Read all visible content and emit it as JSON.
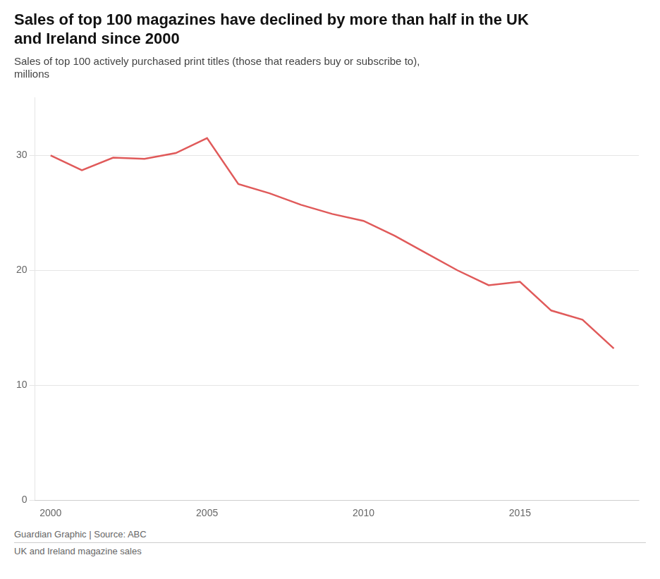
{
  "chart_data": {
    "type": "line",
    "title": "Sales of top 100 magazines have declined by more than half in the UK\nand Ireland since 2000",
    "subtitle": "Sales of top 100 actively purchased print titles (those that readers buy or subscribe to),\nmillions",
    "annotations": [
      "Guardian Graphic | Source: ABC",
      "UK and Ireland magazine sales"
    ],
    "x": [
      2000,
      2001,
      2002,
      2003,
      2004,
      2005,
      2006,
      2007,
      2008,
      2009,
      2010,
      2011,
      2012,
      2013,
      2014,
      2015,
      2016,
      2017,
      2018
    ],
    "values": [
      30.0,
      28.7,
      29.8,
      29.7,
      30.2,
      31.5,
      27.5,
      26.7,
      25.7,
      24.9,
      24.3,
      23.0,
      21.5,
      20.0,
      18.7,
      19.0,
      16.5,
      15.7,
      13.2
    ],
    "color": "#e05a5a",
    "xlim": [
      1999.5,
      2018.8
    ],
    "xticks": [
      2000,
      2005,
      2010,
      2015
    ],
    "ylim": [
      0,
      35
    ],
    "yticks": [
      0,
      10,
      20,
      30
    ],
    "grid": true
  }
}
